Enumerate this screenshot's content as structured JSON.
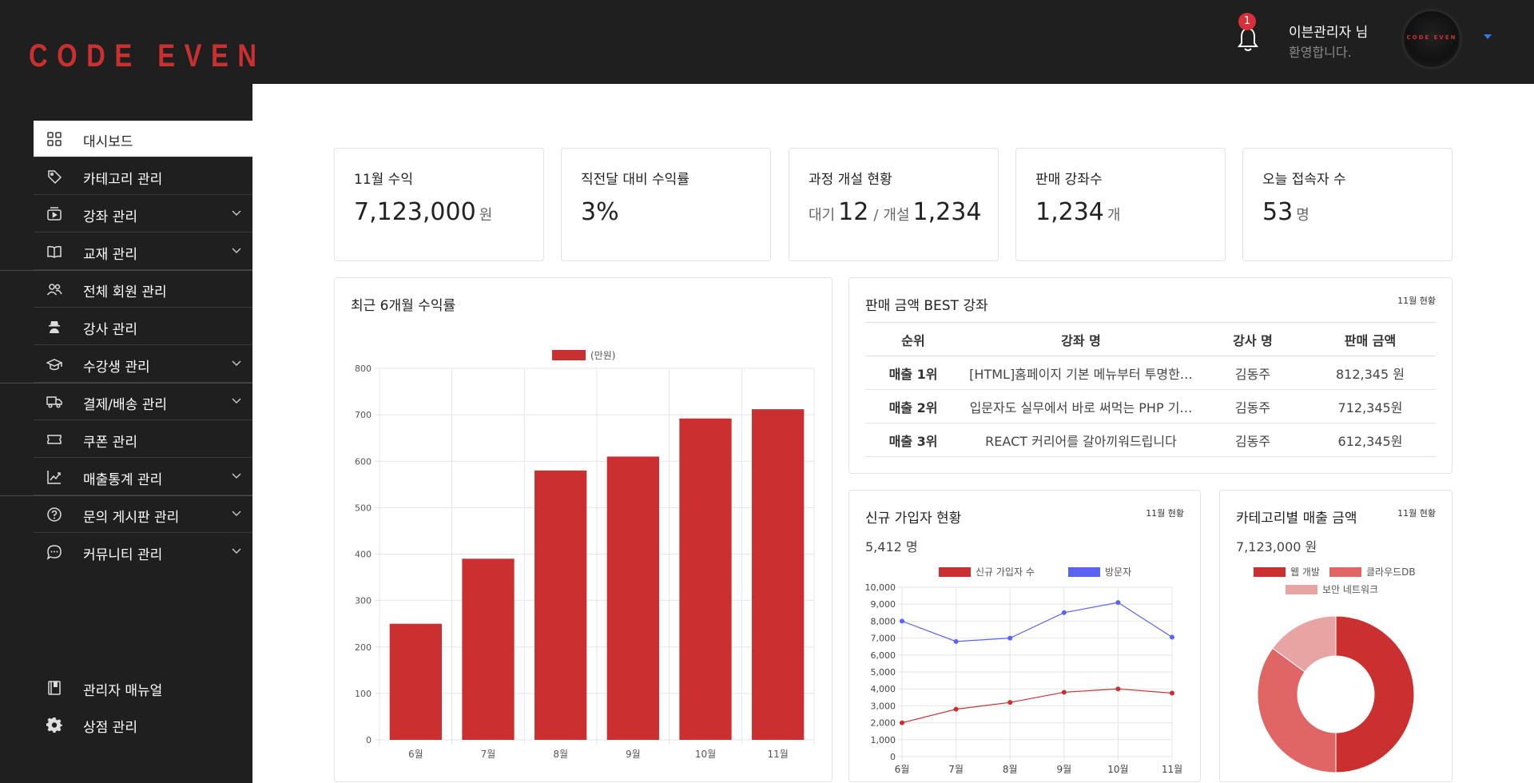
{
  "header": {
    "logo": "CODE EVEN",
    "notification_count": "1",
    "admin_name": "이븐관리자 님",
    "admin_greeting": "환영합니다.",
    "avatar_logo": "CODE EVEN",
    "brand_color": "#c9302f",
    "caret_color": "#2f7be6"
  },
  "sidebar": {
    "items": [
      {
        "label": "대시보드",
        "icon": "dashboard-grid-icon",
        "active": true
      },
      {
        "label": "카테고리 관리",
        "icon": "tag-icon"
      },
      {
        "label": "강좌 관리",
        "icon": "video-play-icon",
        "expandable": true
      },
      {
        "label": "교재 관리",
        "icon": "book-icon",
        "expandable": true
      },
      {
        "label": "전체 회원 관리",
        "icon": "users-icon"
      },
      {
        "label": "강사 관리",
        "icon": "instructor-icon"
      },
      {
        "label": "수강생 관리",
        "icon": "graduation-cap-icon",
        "expandable": true
      },
      {
        "label": "결제/배송 관리",
        "icon": "truck-icon",
        "expandable": true
      },
      {
        "label": "쿠폰 관리",
        "icon": "ticket-icon"
      },
      {
        "label": "매출통계 관리",
        "icon": "chart-line-icon",
        "expandable": true
      },
      {
        "label": "문의 게시판 관리",
        "icon": "question-circle-icon",
        "expandable": true
      },
      {
        "label": "커뮤니티 관리",
        "icon": "chat-bubble-icon",
        "expandable": true
      }
    ],
    "bottom": [
      {
        "label": "관리자 매뉴얼",
        "icon": "manual-book-icon"
      },
      {
        "label": "상점 관리",
        "icon": "gear-icon"
      }
    ]
  },
  "stats": {
    "revenue": {
      "title": "11월 수익",
      "value": "7,123,000",
      "unit": "원"
    },
    "growth": {
      "title": "직전달 대비 수익률",
      "value": "3%"
    },
    "courses": {
      "title": "과정 개설 현황",
      "wait_label": "대기",
      "wait_value": "12",
      "sep": "/",
      "open_label": "개설",
      "open_value": "1,234"
    },
    "sold": {
      "title": "판매 강좌수",
      "value": "1,234",
      "unit": "개"
    },
    "visitors": {
      "title": "오늘 접속자 수",
      "value": "53",
      "unit": "명"
    }
  },
  "revenue_panel": {
    "title": "최근 6개월 수익률"
  },
  "best_panel": {
    "title": "판매 금액 BEST 강좌",
    "note": "11월 현황",
    "columns": [
      "순위",
      "강좌 명",
      "강사 명",
      "판매 금액"
    ],
    "rows": [
      {
        "rank": "매출 1위",
        "course": "[HTML]홈페이지 기본 메뉴부터 투명한…",
        "teacher": "김동주",
        "amount": "812,345 원"
      },
      {
        "rank": "매출 2위",
        "course": "입문자도 실무에서 바로 써먹는 PHP 기…",
        "teacher": "김동주",
        "amount": "712,345원"
      },
      {
        "rank": "매출 3위",
        "course": "REACT 커리어를 갈아끼워드립니다",
        "teacher": "김동주",
        "amount": "612,345원"
      }
    ]
  },
  "signup_panel": {
    "title": "신규 가입자 현황",
    "note": "11월 현황",
    "total": "5,412 명"
  },
  "category_panel": {
    "title": "카테고리별 매출 금액",
    "note": "11월 현황",
    "total": "7,123,000 원"
  },
  "chart_data": [
    {
      "type": "bar",
      "categories": [
        "6월",
        "7월",
        "8월",
        "9월",
        "10월",
        "11월"
      ],
      "series": [
        {
          "name": "(만원)",
          "values": [
            250,
            390,
            580,
            610,
            692,
            712
          ],
          "color": "#c9302f"
        }
      ],
      "ylim": [
        0,
        800
      ],
      "yticks": [
        0,
        100,
        200,
        300,
        400,
        500,
        600,
        700,
        800
      ],
      "legend": "top",
      "grid": true
    },
    {
      "type": "line",
      "categories": [
        "6월",
        "7월",
        "8월",
        "9월",
        "10월",
        "11월"
      ],
      "series": [
        {
          "name": "신규 가입자 수",
          "values": [
            2000,
            2800,
            3200,
            3800,
            4000,
            3750
          ],
          "color": "#c9302f"
        },
        {
          "name": "방문자",
          "values": [
            8000,
            6800,
            7000,
            8500,
            9100,
            7050
          ],
          "color": "#5b63f2"
        }
      ],
      "ylim": [
        0,
        10000
      ],
      "yticks": [
        0,
        1000,
        2000,
        3000,
        4000,
        5000,
        6000,
        7000,
        8000,
        9000,
        10000
      ],
      "ytick_labels": [
        "0",
        "1,000",
        "2,000",
        "3,000",
        "4,000",
        "5,000",
        "6,000",
        "7,000",
        "8,000",
        "9,000",
        "10,000"
      ],
      "legend": "top",
      "grid": true
    },
    {
      "type": "pie",
      "donut": true,
      "series": [
        {
          "name": "웹 개발",
          "value": 50,
          "color": "#c9302f"
        },
        {
          "name": "클라우드DB",
          "value": 35,
          "color": "#e06666"
        },
        {
          "name": "보안 네트워크",
          "value": 15,
          "color": "#e8a3a3"
        }
      ],
      "legend": "top"
    }
  ]
}
